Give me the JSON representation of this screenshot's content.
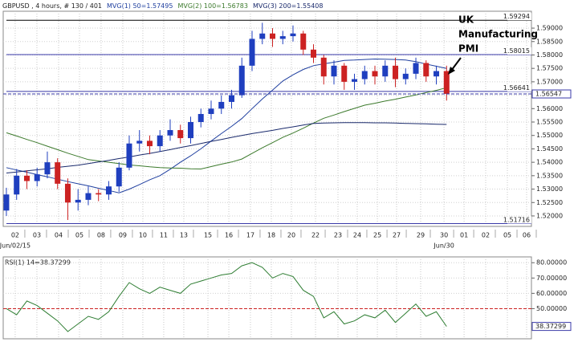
{
  "chart_data": [
    {
      "type": "candlestick",
      "title": "GBPUSD , 4 hours, # 130 / 401",
      "up_color": "#1f3fbf",
      "down_color": "#cc2222",
      "open": [
        1.522,
        1.528,
        1.535,
        1.533,
        1.5355,
        1.54,
        1.532,
        1.525,
        1.526,
        1.5285,
        1.528,
        1.531,
        1.538,
        1.547,
        1.548,
        1.546,
        1.55,
        1.552,
        1.549,
        1.555,
        1.558,
        1.56,
        1.5625,
        1.565,
        1.576,
        1.586,
        1.588,
        1.586,
        1.587,
        1.588,
        1.582,
        1.579,
        1.572,
        1.576,
        1.57,
        1.571,
        1.574,
        1.572,
        1.576,
        1.571,
        1.573,
        1.577,
        1.572,
        1.574
      ],
      "high": [
        1.5305,
        1.5375,
        1.537,
        1.538,
        1.544,
        1.5415,
        1.534,
        1.53,
        1.531,
        1.53,
        1.533,
        1.54,
        1.55,
        1.552,
        1.55,
        1.552,
        1.556,
        1.554,
        1.557,
        1.56,
        1.563,
        1.565,
        1.567,
        1.579,
        1.589,
        1.592,
        1.59,
        1.589,
        1.591,
        1.589,
        1.584,
        1.58,
        1.578,
        1.577,
        1.573,
        1.576,
        1.576,
        1.578,
        1.579,
        1.575,
        1.579,
        1.578,
        1.576,
        1.576
      ],
      "low": [
        1.52,
        1.526,
        1.53,
        1.531,
        1.534,
        1.53,
        1.5185,
        1.522,
        1.524,
        1.5255,
        1.526,
        1.529,
        1.537,
        1.544,
        1.543,
        1.544,
        1.548,
        1.547,
        1.547,
        1.553,
        1.556,
        1.558,
        1.56,
        1.564,
        1.574,
        1.584,
        1.583,
        1.584,
        1.585,
        1.58,
        1.577,
        1.569,
        1.569,
        1.567,
        1.567,
        1.569,
        1.569,
        1.57,
        1.568,
        1.569,
        1.571,
        1.57,
        1.569,
        1.563
      ],
      "close": [
        1.528,
        1.535,
        1.533,
        1.5355,
        1.54,
        1.532,
        1.525,
        1.526,
        1.5285,
        1.528,
        1.531,
        1.538,
        1.547,
        1.548,
        1.546,
        1.55,
        1.552,
        1.549,
        1.555,
        1.558,
        1.56,
        1.5625,
        1.565,
        1.576,
        1.586,
        1.588,
        1.586,
        1.587,
        1.588,
        1.582,
        1.579,
        1.572,
        1.576,
        1.57,
        1.571,
        1.574,
        1.572,
        1.576,
        1.571,
        1.573,
        1.577,
        1.572,
        1.574,
        1.5655
      ],
      "series": [
        {
          "name": "MVG(1) 50=1.57495",
          "color": "#1f3f9f",
          "values": [
            1.538,
            1.5371,
            1.5363,
            1.5354,
            1.5346,
            1.5337,
            1.5328,
            1.532,
            1.5312,
            1.5303,
            1.5295,
            1.5286,
            1.53,
            1.5317,
            1.5335,
            1.535,
            1.5374,
            1.54,
            1.5424,
            1.545,
            1.5479,
            1.5507,
            1.5534,
            1.5563,
            1.56,
            1.5636,
            1.5669,
            1.5703,
            1.5726,
            1.5746,
            1.576,
            1.5767,
            1.5773,
            1.578,
            1.5781,
            1.5783,
            1.5785,
            1.5784,
            1.5783,
            1.5781,
            1.5775,
            1.5766,
            1.5758,
            1.575
          ]
        },
        {
          "name": "MVG(2) 100=1.56783",
          "color": "#3c7a2c",
          "values": [
            1.551,
            1.5498,
            1.5485,
            1.5473,
            1.546,
            1.5447,
            1.5434,
            1.5422,
            1.541,
            1.5405,
            1.54,
            1.5395,
            1.539,
            1.5387,
            1.5383,
            1.538,
            1.5379,
            1.5378,
            1.5376,
            1.5375,
            1.5384,
            1.5393,
            1.5401,
            1.5412,
            1.5433,
            1.5454,
            1.5473,
            1.5493,
            1.5509,
            1.5527,
            1.5546,
            1.5564,
            1.5576,
            1.5589,
            1.5601,
            1.5613,
            1.562,
            1.5628,
            1.5635,
            1.5643,
            1.5651,
            1.566,
            1.5668,
            1.5678
          ]
        },
        {
          "name": "MVG(3) 200=1.55408",
          "color": "#1a2a6c",
          "values": [
            1.536,
            1.5364,
            1.5368,
            1.5372,
            1.5376,
            1.5381,
            1.5385,
            1.5389,
            1.5395,
            1.5401,
            1.5407,
            1.5414,
            1.542,
            1.5427,
            1.5433,
            1.544,
            1.5447,
            1.5455,
            1.5462,
            1.547,
            1.5478,
            1.5485,
            1.5493,
            1.55,
            1.5507,
            1.5513,
            1.5519,
            1.5526,
            1.5532,
            1.5539,
            1.5545,
            1.5546,
            1.5547,
            1.5548,
            1.5548,
            1.5548,
            1.5547,
            1.5547,
            1.5546,
            1.5545,
            1.5544,
            1.5543,
            1.5542,
            1.5541
          ]
        }
      ],
      "levels": [
        1.59294,
        1.58015,
        1.56641,
        1.51716
      ],
      "level_color": "#3a3aa8",
      "current": 1.56547,
      "ylim": [
        1.5161,
        1.5963
      ],
      "yticks": [
        {
          "value": 1.52,
          "label": "1.52000"
        },
        {
          "value": 1.525,
          "label": "1.52500"
        },
        {
          "value": 1.53,
          "label": "1.53000"
        },
        {
          "value": 1.535,
          "label": "1.53500"
        },
        {
          "value": 1.54,
          "label": "1.54000"
        },
        {
          "value": 1.545,
          "label": "1.54500"
        },
        {
          "value": 1.55,
          "label": "1.55000"
        },
        {
          "value": 1.555,
          "label": "1.55500"
        },
        {
          "value": 1.56,
          "label": "1.56000"
        },
        {
          "value": 1.565,
          "label": "1.56500"
        },
        {
          "value": 1.57,
          "label": "1.57000"
        },
        {
          "value": 1.575,
          "label": "1.57500"
        },
        {
          "value": 1.58,
          "label": "1.58000"
        },
        {
          "value": 1.585,
          "label": "1.58500"
        },
        {
          "value": 1.59,
          "label": "1.59000"
        }
      ],
      "xlim": [
        -0.31,
        51.29
      ],
      "xticks": [
        {
          "value": 0.86,
          "label": "02"
        },
        {
          "value": 2.98,
          "label": "03"
        },
        {
          "value": 5.1,
          "label": "04"
        },
        {
          "value": 7.14,
          "label": "05"
        },
        {
          "value": 9.25,
          "label": "08"
        },
        {
          "value": 11.37,
          "label": "09"
        },
        {
          "value": 13.33,
          "label": "10"
        },
        {
          "value": 15.37,
          "label": "11"
        },
        {
          "value": 17.33,
          "label": "13"
        },
        {
          "value": 19.69,
          "label": "15"
        },
        {
          "value": 21.73,
          "label": "16"
        },
        {
          "value": 23.84,
          "label": "17"
        },
        {
          "value": 25.88,
          "label": "18"
        },
        {
          "value": 27.84,
          "label": "20"
        },
        {
          "value": 30.2,
          "label": "22"
        },
        {
          "value": 32.39,
          "label": "23"
        },
        {
          "value": 34.27,
          "label": "24"
        },
        {
          "value": 36.24,
          "label": "25"
        },
        {
          "value": 38.12,
          "label": "27"
        },
        {
          "value": 40.47,
          "label": "29"
        },
        {
          "value": 42.75,
          "label": "30"
        },
        {
          "value": 44.71,
          "label": "01"
        },
        {
          "value": 46.82,
          "label": "02"
        },
        {
          "value": 48.94,
          "label": "05"
        },
        {
          "value": 50.82,
          "label": "06"
        }
      ],
      "date_labels": [
        {
          "value": 0.86,
          "label": "Jun/02/15"
        },
        {
          "value": 42.75,
          "label": "Jun/30"
        }
      ],
      "annotation": [
        "UK",
        "Manufacturing",
        "PMI"
      ],
      "grid": true
    },
    {
      "type": "line",
      "title": "RSI(1) 14=38.37299",
      "color": "#2e7d32",
      "values": [
        50,
        46,
        55,
        52,
        47,
        42,
        35,
        40,
        45,
        43,
        48,
        58,
        67,
        63,
        60,
        64,
        62,
        60,
        66,
        68,
        70,
        72,
        73,
        78,
        80,
        77,
        70,
        73,
        71,
        62,
        58,
        44,
        48,
        40,
        42,
        46,
        44,
        49,
        41,
        47,
        53,
        45,
        48,
        38.37299
      ],
      "reference": 50,
      "current": 38.37299,
      "ylim": [
        30.3,
        83.8
      ],
      "yticks": [
        {
          "value": 50,
          "label": "50.00000"
        },
        {
          "value": 60,
          "label": "60.00000"
        },
        {
          "value": 70,
          "label": "70.00000"
        },
        {
          "value": 80,
          "label": "80.00000"
        }
      ],
      "grid": true
    }
  ]
}
